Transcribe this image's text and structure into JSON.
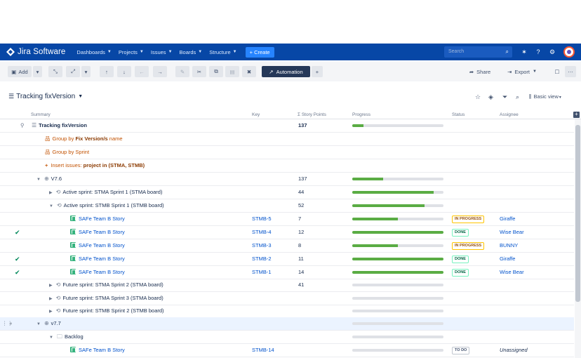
{
  "nav": {
    "brand": "Jira Software",
    "items": [
      "Dashboards",
      "Projects",
      "Issues",
      "Boards",
      "Structure"
    ],
    "create": "+ Create",
    "search_placeholder": "Search"
  },
  "toolbar": {
    "add": "Add",
    "automation": "Automation",
    "share": "Share",
    "export": "Export"
  },
  "structure": {
    "title": "Tracking fixVersion",
    "view": "Basic view"
  },
  "columns": {
    "summary": "Summary",
    "key": "Key",
    "story_points": "Σ Story Points",
    "progress": "Progress",
    "status": "Status",
    "assignee": "Assignee"
  },
  "rows": [
    {
      "summary": "Tracking fixVersion",
      "key": "",
      "points": "137",
      "progress": 0.12,
      "status": "",
      "assignee": ""
    },
    {
      "summary_prefix": "Group by ",
      "summary_bold": "Fix Version/s",
      "summary_suffix": " name"
    },
    {
      "summary": "Group by Sprint"
    },
    {
      "summary_prefix": "Insert issues: ",
      "summary_bold": "project in (STMA, STMB)"
    },
    {
      "summary": "V7.6",
      "points": "137",
      "progress": 0.34
    },
    {
      "summary": "Active sprint: STMA Sprint 1 (STMA board)",
      "points": "44",
      "progress": 0.89
    },
    {
      "summary": "Active sprint: STMB Sprint 1 (STMB board)",
      "points": "52",
      "progress": 0.79
    },
    {
      "summary": "SAFe Team B Story",
      "key": "STMB-5",
      "points": "7",
      "progress": 0.5,
      "status": "IN PROGRESS",
      "assignee": "Giraffe"
    },
    {
      "summary": "SAFe Team B Story",
      "key": "STMB-4",
      "points": "12",
      "progress": 1.0,
      "status": "DONE",
      "assignee": "Wise Bear"
    },
    {
      "summary": "SAFe Team B Story",
      "key": "STMB-3",
      "points": "8",
      "progress": 0.5,
      "status": "IN PROGRESS",
      "assignee": "BUNNY"
    },
    {
      "summary": "SAFe Team B Story",
      "key": "STMB-2",
      "points": "11",
      "progress": 1.0,
      "status": "DONE",
      "assignee": "Giraffe"
    },
    {
      "summary": "SAFe Team B Story",
      "key": "STMB-1",
      "points": "14",
      "progress": 1.0,
      "status": "DONE",
      "assignee": "Wise Bear"
    },
    {
      "summary": "Future sprint: STMA Sprint 2 (STMA board)",
      "points": "41",
      "progress": 0.0
    },
    {
      "summary": "Future sprint: STMA Sprint 3 (STMA board)",
      "progress": 0.0
    },
    {
      "summary": "Future sprint: STMB Sprint 2 (STMB board)",
      "progress": 0.0
    },
    {
      "summary": "v7.7",
      "progress": 0.0
    },
    {
      "summary": "Backlog",
      "progress": 0.0
    },
    {
      "summary": "SAFe Team B Story",
      "key": "STMB-14",
      "progress": 0.0,
      "status": "TO DO",
      "assignee": "Unassigned"
    }
  ],
  "colors": {
    "nav": "#0747a6",
    "accent": "#2684ff",
    "progress": "#5aac44"
  }
}
